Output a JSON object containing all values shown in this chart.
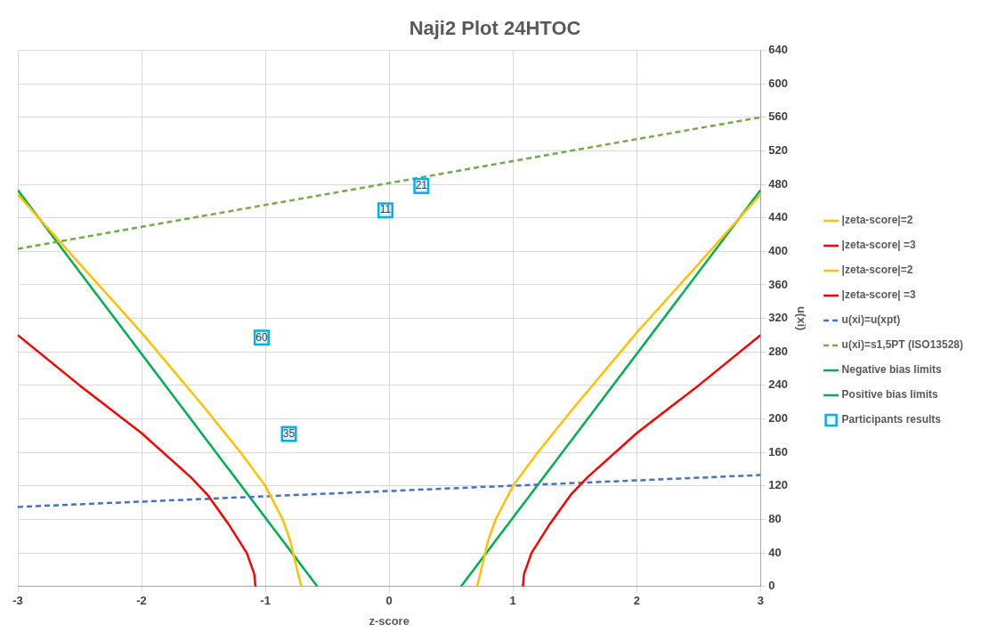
{
  "chart_data": {
    "type": "line",
    "title": "Naji2 Plot 24HTOC",
    "xlabel": "z-score",
    "ylabel": "u(xi)",
    "xlim": [
      -3,
      3
    ],
    "xticks": [
      -3,
      -2,
      -1,
      0,
      1,
      2,
      3
    ],
    "ylim": [
      0,
      640
    ],
    "yticks": [
      0,
      40,
      80,
      120,
      160,
      200,
      240,
      280,
      320,
      360,
      400,
      440,
      480,
      520,
      560,
      600,
      640
    ],
    "grid": true,
    "legend": "right",
    "marker": "none",
    "series": [
      {
        "name": "|zeta-score|=2",
        "color": "#ffc000",
        "x": [
          -3,
          -2.5,
          -2,
          -1.5,
          -1.2,
          -1,
          -0.86,
          -0.8,
          -0.76,
          -0.71
        ],
        "values": [
          468,
          385,
          303,
          215,
          160,
          120,
          80,
          55,
          30,
          0
        ]
      },
      {
        "name": "|zeta-score| =3",
        "color": "#ff0000",
        "x": [
          -3,
          -2.5,
          -2,
          -1.6,
          -1.47,
          -1.3,
          -1.15,
          -1.09,
          -1.08
        ],
        "values": [
          300,
          240,
          183,
          130,
          110,
          75,
          40,
          15,
          0
        ]
      },
      {
        "name": "|zeta-score|=2",
        "color": "#ffc000",
        "x": [
          0.71,
          0.76,
          0.8,
          0.86,
          1,
          1.2,
          1.5,
          2,
          2.5,
          3
        ],
        "values": [
          0,
          30,
          55,
          80,
          120,
          160,
          215,
          303,
          385,
          468
        ]
      },
      {
        "name": "|zeta-score| =3",
        "color": "#ff0000",
        "x": [
          1.08,
          1.09,
          1.15,
          1.3,
          1.47,
          1.6,
          2,
          2.5,
          3
        ],
        "values": [
          0,
          15,
          40,
          75,
          110,
          130,
          183,
          240,
          300
        ]
      },
      {
        "name": "u(xi)=u(xpt)",
        "color": "#4472c4",
        "line_style": "dashed",
        "x": [
          -3,
          3
        ],
        "values": [
          95,
          133
        ]
      },
      {
        "name": "u(xi)=s1,5PT (ISO13528)",
        "color": "#70ad47",
        "line_style": "dashed",
        "x": [
          -3,
          3
        ],
        "values": [
          403,
          560
        ]
      },
      {
        "name": "Negative bias limits",
        "color": "#00b050",
        "x": [
          -3,
          -0.58
        ],
        "values": [
          473,
          0
        ]
      },
      {
        "name": "Positive bias limits",
        "color": "#00b050",
        "x": [
          0.58,
          3
        ],
        "values": [
          0,
          473
        ]
      },
      {
        "name": "Participants results",
        "type": "scatter",
        "marker": "square",
        "color": "#00b0f0",
        "x": [
          0.26,
          -0.03,
          -1.03,
          -0.81
        ],
        "values": [
          478,
          449,
          297,
          182
        ]
      }
    ],
    "annotations": [
      {
        "text": "21",
        "x": 0.26,
        "y": 478
      },
      {
        "text": "11",
        "x": -0.03,
        "y": 449
      },
      {
        "text": "60",
        "x": -1.03,
        "y": 297
      },
      {
        "text": "35",
        "x": -0.81,
        "y": 182
      }
    ]
  }
}
